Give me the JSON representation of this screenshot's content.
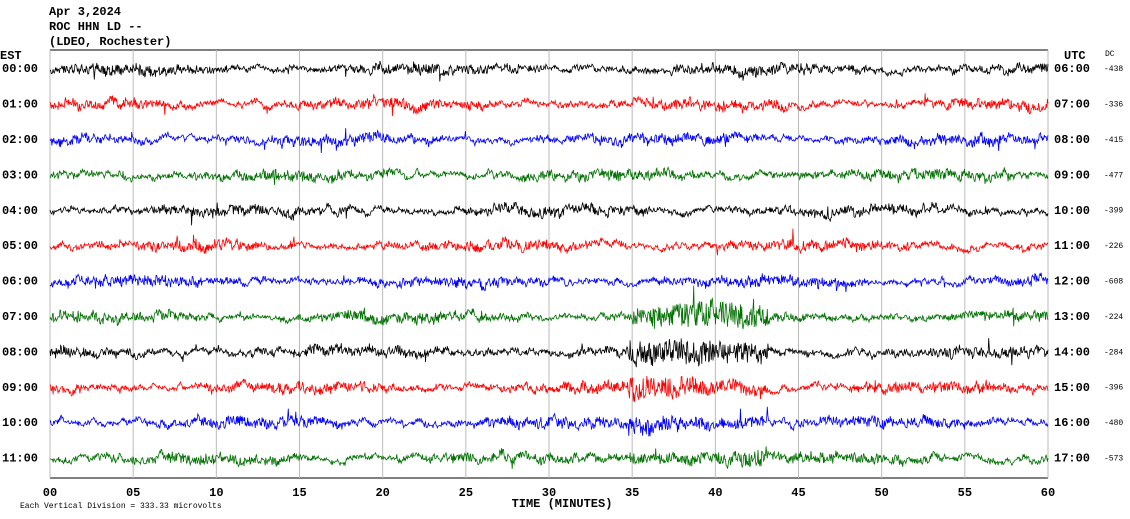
{
  "chart_data": {
    "type": "helicorder",
    "header_lines": [
      "Apr 3,2024",
      "ROC HHN LD --",
      "(LDEO, Rochester)"
    ],
    "left_axis_label": "EST",
    "right_axis_label": "UTC",
    "dc_label": "DC",
    "rows": [
      {
        "est": "00:00",
        "utc": "06:00",
        "dc": -438,
        "color": "#000000"
      },
      {
        "est": "01:00",
        "utc": "07:00",
        "dc": -336,
        "color": "#ff0000"
      },
      {
        "est": "02:00",
        "utc": "08:00",
        "dc": -415,
        "color": "#0000ff"
      },
      {
        "est": "03:00",
        "utc": "09:00",
        "dc": -477,
        "color": "#007000"
      },
      {
        "est": "04:00",
        "utc": "10:00",
        "dc": -399,
        "color": "#000000"
      },
      {
        "est": "05:00",
        "utc": "11:00",
        "dc": -226,
        "color": "#ff0000"
      },
      {
        "est": "06:00",
        "utc": "12:00",
        "dc": -608,
        "color": "#0000ff"
      },
      {
        "est": "07:00",
        "utc": "13:00",
        "dc": -224,
        "color": "#007000"
      },
      {
        "est": "08:00",
        "utc": "14:00",
        "dc": -284,
        "color": "#000000"
      },
      {
        "est": "09:00",
        "utc": "15:00",
        "dc": -396,
        "color": "#ff0000"
      },
      {
        "est": "10:00",
        "utc": "16:00",
        "dc": -480,
        "color": "#0000ff"
      },
      {
        "est": "11:00",
        "utc": "17:00",
        "dc": -573,
        "color": "#007000"
      }
    ],
    "xlabel": "TIME (MINUTES)",
    "xlim": [
      0,
      60
    ],
    "xticks": [
      {
        "value": 0,
        "label": "00"
      },
      {
        "value": 5,
        "label": "05"
      },
      10,
      15,
      20,
      25,
      30,
      35,
      40,
      45,
      50,
      55,
      60
    ],
    "footer": "Each Vertical Division =  333.33 microvolts",
    "grid": true
  }
}
